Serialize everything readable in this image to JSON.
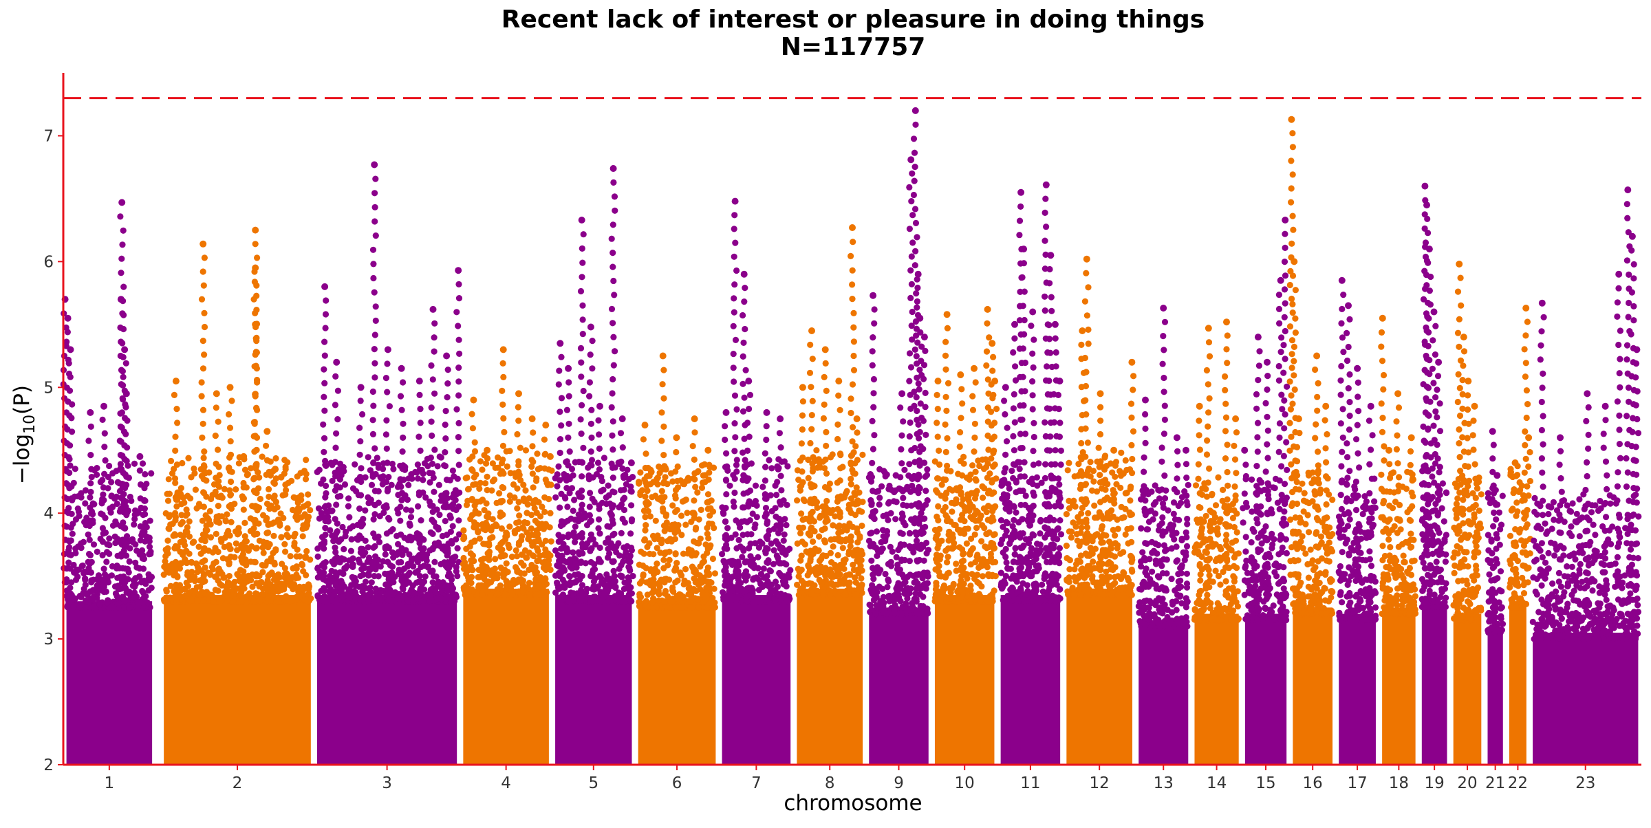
{
  "chart_data": {
    "type": "scatter",
    "subtype": "manhattan",
    "title": "Recent lack of interest or pleasure in doing things",
    "subtitle": "N=117757",
    "xlabel": "chromosome",
    "ylabel": "−log10(P)",
    "ylim": [
      2,
      7.5
    ],
    "y_ticks": [
      2,
      3,
      4,
      5,
      6,
      7
    ],
    "significance_line": 7.3,
    "grid": false,
    "colors": {
      "odd": "#8B008B",
      "even": "#EE7500",
      "axis": "#E8131D",
      "threshold": "#E8131D"
    },
    "chromosomes": [
      {
        "label": "1",
        "start": 0.0,
        "width": 0.102,
        "dense_top": 3.75,
        "peaks": [
          [
            0.002,
            5.7
          ],
          [
            0.005,
            5.55
          ],
          [
            0.008,
            5.3
          ],
          [
            0.03,
            4.8
          ],
          [
            0.045,
            4.85
          ],
          [
            0.07,
            4.95
          ],
          [
            0.065,
            6.47
          ],
          [
            0.064,
            5.7
          ],
          [
            0.068,
            5.3
          ],
          [
            0.085,
            4.45
          ],
          [
            0.09,
            4.1
          ]
        ]
      },
      {
        "label": "2",
        "start": 0.108,
        "width": 0.17,
        "dense_top": 3.8,
        "peaks": [
          [
            0.125,
            5.05
          ],
          [
            0.155,
            6.14
          ],
          [
            0.17,
            4.95
          ],
          [
            0.185,
            5.0
          ],
          [
            0.2,
            4.45
          ],
          [
            0.213,
            6.25
          ],
          [
            0.213,
            5.95
          ],
          [
            0.213,
            5.5
          ],
          [
            0.226,
            4.65
          ],
          [
            0.235,
            4.35
          ]
        ]
      },
      {
        "label": "3",
        "start": 0.278,
        "width": 0.162,
        "dense_top": 3.8,
        "peaks": [
          [
            0.29,
            5.8
          ],
          [
            0.303,
            5.2
          ],
          [
            0.33,
            5.0
          ],
          [
            0.345,
            6.77
          ],
          [
            0.36,
            5.3
          ],
          [
            0.375,
            5.15
          ],
          [
            0.395,
            5.05
          ],
          [
            0.41,
            5.62
          ],
          [
            0.425,
            5.25
          ],
          [
            0.438,
            5.93
          ]
        ]
      },
      {
        "label": "4",
        "start": 0.44,
        "width": 0.102,
        "dense_top": 3.85,
        "peaks": [
          [
            0.455,
            4.9
          ],
          [
            0.47,
            4.5
          ],
          [
            0.488,
            5.3
          ],
          [
            0.505,
            4.95
          ],
          [
            0.52,
            4.75
          ],
          [
            0.535,
            4.7
          ],
          [
            0.54,
            4.45
          ]
        ]
      },
      {
        "label": "5",
        "start": 0.542,
        "width": 0.092,
        "dense_top": 3.8,
        "peaks": [
          [
            0.551,
            5.35
          ],
          [
            0.56,
            5.15
          ],
          [
            0.575,
            6.33
          ],
          [
            0.585,
            5.48
          ],
          [
            0.595,
            4.85
          ],
          [
            0.61,
            6.74
          ],
          [
            0.62,
            4.75
          ],
          [
            0.63,
            4.4
          ]
        ]
      },
      {
        "label": "6",
        "start": 0.634,
        "width": 0.093,
        "dense_top": 3.75,
        "peaks": [
          [
            0.645,
            4.7
          ],
          [
            0.665,
            5.25
          ],
          [
            0.68,
            4.6
          ],
          [
            0.7,
            4.75
          ],
          [
            0.715,
            4.5
          ]
        ]
      },
      {
        "label": "7",
        "start": 0.727,
        "width": 0.083,
        "dense_top": 3.8,
        "peaks": [
          [
            0.735,
            4.8
          ],
          [
            0.745,
            6.48
          ],
          [
            0.755,
            5.9
          ],
          [
            0.76,
            5.05
          ],
          [
            0.78,
            4.8
          ],
          [
            0.795,
            4.75
          ]
        ]
      },
      {
        "label": "8",
        "start": 0.81,
        "width": 0.08,
        "dense_top": 3.85,
        "peaks": [
          [
            0.82,
            5.0
          ],
          [
            0.83,
            5.45
          ],
          [
            0.845,
            5.3
          ],
          [
            0.86,
            5.05
          ],
          [
            0.875,
            6.27
          ],
          [
            0.88,
            4.75
          ]
        ]
      },
      {
        "label": "9",
        "start": 0.89,
        "width": 0.073,
        "dense_top": 3.7,
        "peaks": [
          [
            0.898,
            5.73
          ],
          [
            0.93,
            4.95
          ],
          [
            0.94,
            6.81
          ],
          [
            0.945,
            7.2
          ],
          [
            0.948,
            5.9
          ],
          [
            0.95,
            5.55
          ],
          [
            0.955,
            5.4
          ]
        ]
      },
      {
        "label": "10",
        "start": 0.963,
        "width": 0.073,
        "dense_top": 3.8,
        "peaks": [
          [
            0.97,
            5.05
          ],
          [
            0.98,
            5.58
          ],
          [
            0.995,
            5.1
          ],
          [
            1.01,
            5.15
          ],
          [
            1.025,
            5.62
          ],
          [
            1.03,
            5.35
          ],
          [
            1.033,
            5.05
          ]
        ]
      },
      {
        "label": "11",
        "start": 1.036,
        "width": 0.073,
        "dense_top": 3.8,
        "peaks": [
          [
            1.045,
            5.0
          ],
          [
            1.055,
            5.5
          ],
          [
            1.062,
            6.55
          ],
          [
            1.065,
            6.1
          ],
          [
            1.075,
            5.6
          ],
          [
            1.09,
            6.61
          ],
          [
            1.095,
            6.05
          ],
          [
            1.1,
            5.5
          ],
          [
            1.105,
            5.05
          ]
        ]
      },
      {
        "label": "12",
        "start": 1.109,
        "width": 0.08,
        "dense_top": 3.85,
        "peaks": [
          [
            1.13,
            5.45
          ],
          [
            1.135,
            6.02
          ],
          [
            1.15,
            4.95
          ],
          [
            1.165,
            4.5
          ],
          [
            1.185,
            5.2
          ]
        ]
      },
      {
        "label": "13",
        "start": 1.189,
        "width": 0.062,
        "dense_top": 3.6,
        "peaks": [
          [
            1.2,
            4.9
          ],
          [
            1.22,
            5.63
          ],
          [
            1.235,
            4.6
          ],
          [
            1.245,
            4.5
          ]
        ]
      },
      {
        "label": "14",
        "start": 1.251,
        "width": 0.056,
        "dense_top": 3.65,
        "peaks": [
          [
            1.26,
            4.85
          ],
          [
            1.27,
            5.47
          ],
          [
            1.29,
            5.52
          ],
          [
            1.3,
            4.75
          ]
        ]
      },
      {
        "label": "15",
        "start": 1.307,
        "width": 0.053,
        "dense_top": 3.65,
        "peaks": [
          [
            1.31,
            4.5
          ],
          [
            1.325,
            5.4
          ],
          [
            1.335,
            5.2
          ],
          [
            1.35,
            5.85
          ],
          [
            1.355,
            6.33
          ]
        ]
      },
      {
        "label": "16",
        "start": 1.36,
        "width": 0.051,
        "dense_top": 3.7,
        "peaks": [
          [
            1.362,
            7.13
          ],
          [
            1.365,
            6.0
          ],
          [
            1.37,
            4.75
          ],
          [
            1.39,
            5.25
          ],
          [
            1.4,
            4.85
          ]
        ]
      },
      {
        "label": "17",
        "start": 1.411,
        "width": 0.048,
        "dense_top": 3.65,
        "peaks": [
          [
            1.418,
            5.85
          ],
          [
            1.425,
            5.65
          ],
          [
            1.435,
            5.15
          ],
          [
            1.45,
            4.85
          ]
        ]
      },
      {
        "label": "18",
        "start": 1.459,
        "width": 0.044,
        "dense_top": 3.7,
        "peaks": [
          [
            1.463,
            5.55
          ],
          [
            1.47,
            4.5
          ],
          [
            1.48,
            4.95
          ],
          [
            1.495,
            4.6
          ]
        ]
      },
      {
        "label": "19",
        "start": 1.503,
        "width": 0.035,
        "dense_top": 3.75,
        "peaks": [
          [
            1.51,
            6.6
          ],
          [
            1.512,
            6.45
          ],
          [
            1.515,
            6.1
          ],
          [
            1.52,
            5.6
          ],
          [
            1.525,
            5.2
          ]
        ]
      },
      {
        "label": "20",
        "start": 1.538,
        "width": 0.038,
        "dense_top": 3.65,
        "peaks": [
          [
            1.548,
            5.98
          ],
          [
            1.553,
            5.4
          ],
          [
            1.558,
            5.05
          ],
          [
            1.565,
            4.85
          ]
        ]
      },
      {
        "label": "21",
        "start": 1.576,
        "width": 0.024,
        "dense_top": 3.55,
        "peaks": [
          [
            1.585,
            4.65
          ],
          [
            1.59,
            4.3
          ]
        ]
      },
      {
        "label": "22",
        "start": 1.6,
        "width": 0.026,
        "dense_top": 3.75,
        "peaks": [
          [
            1.61,
            4.4
          ],
          [
            1.622,
            5.63
          ],
          [
            1.625,
            4.6
          ]
        ]
      },
      {
        "label": "23",
        "start": 1.626,
        "width": 0.124,
        "dense_top": 3.5,
        "peaks": [
          [
            1.64,
            5.67
          ],
          [
            1.66,
            4.6
          ],
          [
            1.69,
            4.95
          ],
          [
            1.71,
            4.85
          ],
          [
            1.725,
            5.9
          ],
          [
            1.735,
            6.57
          ],
          [
            1.74,
            6.2
          ],
          [
            1.745,
            5.3
          ]
        ]
      }
    ]
  }
}
